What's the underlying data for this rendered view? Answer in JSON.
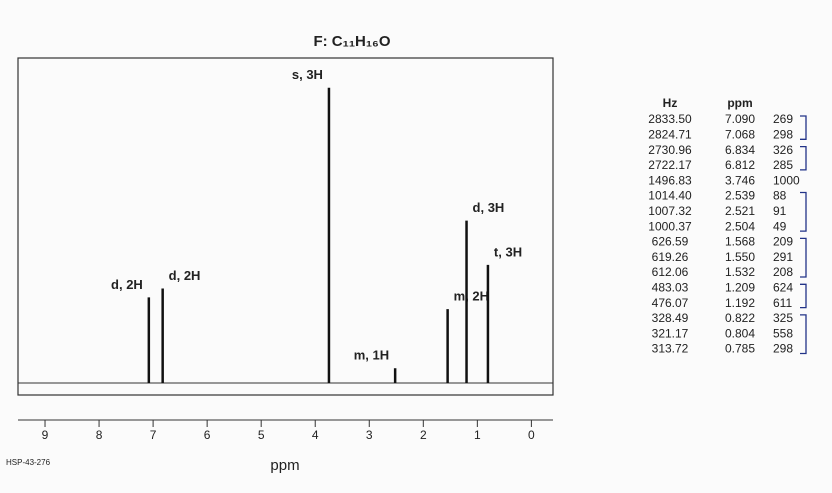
{
  "chart_data": {
    "type": "spectrum",
    "title": "F: C₁₁H₁₆O",
    "xlabel": "ppm",
    "footer": "HSP-43-276",
    "x": [
      7.079,
      6.823,
      3.746,
      2.521,
      1.55,
      1.2,
      0.804
    ],
    "values": [
      29,
      32,
      100,
      5,
      25,
      55,
      40
    ],
    "peak_labels": [
      "d, 2H",
      "d, 2H",
      "s, 3H",
      "m, 1H",
      "m, 2H",
      "d, 3H",
      "t, 3H"
    ],
    "color": "#111111",
    "xlim": [
      9.5,
      -0.4
    ],
    "ylim": [
      0,
      106
    ],
    "xticks": [
      9,
      8,
      7,
      6,
      5,
      4,
      3,
      2,
      1,
      0
    ]
  },
  "table": {
    "header": [
      "Hz",
      "ppm"
    ],
    "rows": [
      [
        "2833.50",
        "7.090",
        "269"
      ],
      [
        "2824.71",
        "7.068",
        "298"
      ],
      [
        "2730.96",
        "6.834",
        "326"
      ],
      [
        "2722.17",
        "6.812",
        "285"
      ],
      [
        "1496.83",
        "3.746",
        "1000"
      ],
      [
        "1014.40",
        "2.539",
        "88"
      ],
      [
        "1007.32",
        "2.521",
        "91"
      ],
      [
        "1000.37",
        "2.504",
        "49"
      ],
      [
        "626.59",
        "1.568",
        "209"
      ],
      [
        "619.26",
        "1.550",
        "291"
      ],
      [
        "612.06",
        "1.532",
        "208"
      ],
      [
        "483.03",
        "1.209",
        "624"
      ],
      [
        "476.07",
        "1.192",
        "611"
      ],
      [
        "328.49",
        "0.822",
        "325"
      ],
      [
        "321.17",
        "0.804",
        "558"
      ],
      [
        "313.72",
        "0.785",
        "298"
      ]
    ]
  }
}
